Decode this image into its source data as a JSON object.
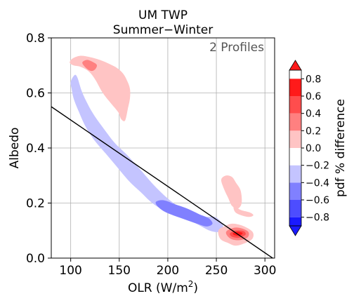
{
  "chart_data": {
    "type": "contour",
    "title": "UM TWP",
    "subtitle": "Summer−Winter",
    "annotation": "2 Profiles",
    "xlabel": "OLR (W/m",
    "xlabel_sup": "2",
    "xlabel_suffix": ")",
    "ylabel": "Albedo",
    "xlim": [
      80,
      310
    ],
    "ylim": [
      0.0,
      0.8
    ],
    "xticks": [
      100,
      150,
      200,
      250,
      300
    ],
    "yticks": [
      0.0,
      0.2,
      0.4,
      0.6,
      0.8
    ],
    "xtick_labels": [
      "100",
      "150",
      "200",
      "250",
      "300"
    ],
    "ytick_labels": [
      "0.0",
      "0.2",
      "0.4",
      "0.6",
      "0.8"
    ],
    "grid": true,
    "colorbar": {
      "label": "pdf % difference",
      "levels": [
        -0.9,
        -0.8,
        -0.6,
        -0.4,
        -0.2,
        0.0,
        0.2,
        0.4,
        0.6,
        0.8,
        0.9
      ],
      "tick_labels": [
        "−0.8",
        "−0.6",
        "−0.4",
        "−0.2",
        "0.0",
        "0.2",
        "0.4",
        "0.6",
        "0.8"
      ],
      "tick_values": [
        -0.8,
        -0.6,
        -0.4,
        -0.2,
        0.0,
        0.2,
        0.4,
        0.6,
        0.8
      ],
      "colors": [
        "#1a1aff",
        "#4d4dff",
        "#8080ff",
        "#c4c4ff",
        "#ffffff",
        "#ffc4c4",
        "#ff8080",
        "#ff4d4d",
        "#ff1a1a"
      ],
      "extend": "both"
    },
    "line": {
      "x": [
        80,
        308
      ],
      "y": [
        0.55,
        0.0
      ],
      "color": "#000000"
    },
    "regions": [
      {
        "name": "pos-top-left",
        "level": 0.2,
        "color": "#ffc4c4",
        "points": [
          [
            99,
            0.71
          ],
          [
            102,
            0.725
          ],
          [
            110,
            0.735
          ],
          [
            120,
            0.73
          ],
          [
            130,
            0.72
          ],
          [
            140,
            0.705
          ],
          [
            148,
            0.69
          ],
          [
            154,
            0.67
          ],
          [
            158,
            0.645
          ],
          [
            161,
            0.615
          ],
          [
            161,
            0.58
          ],
          [
            159,
            0.545
          ],
          [
            156,
            0.5
          ],
          [
            152,
            0.505
          ],
          [
            149,
            0.53
          ],
          [
            142,
            0.56
          ],
          [
            133,
            0.6
          ],
          [
            125,
            0.65
          ],
          [
            118,
            0.68
          ],
          [
            110,
            0.695
          ],
          [
            103,
            0.7
          ]
        ]
      },
      {
        "name": "pos-top-left-core",
        "level": 0.4,
        "color": "#ff8080",
        "points": [
          [
            112,
            0.71
          ],
          [
            117,
            0.72
          ],
          [
            124,
            0.71
          ],
          [
            127,
            0.7
          ],
          [
            125,
            0.685
          ],
          [
            121,
            0.68
          ],
          [
            116,
            0.69
          ]
        ]
      },
      {
        "name": "neg-band",
        "level": -0.2,
        "color": "#c4c4ff",
        "points": [
          [
            100,
            0.64
          ],
          [
            104,
            0.665
          ],
          [
            107,
            0.655
          ],
          [
            111,
            0.61
          ],
          [
            116,
            0.57
          ],
          [
            123,
            0.525
          ],
          [
            132,
            0.48
          ],
          [
            145,
            0.42
          ],
          [
            158,
            0.375
          ],
          [
            172,
            0.32
          ],
          [
            187,
            0.26
          ],
          [
            204,
            0.205
          ],
          [
            220,
            0.17
          ],
          [
            235,
            0.15
          ],
          [
            248,
            0.15
          ],
          [
            255,
            0.13
          ],
          [
            257,
            0.11
          ],
          [
            252,
            0.095
          ],
          [
            243,
            0.1
          ],
          [
            232,
            0.12
          ],
          [
            215,
            0.15
          ],
          [
            198,
            0.17
          ],
          [
            184,
            0.2
          ],
          [
            172,
            0.24
          ],
          [
            160,
            0.28
          ],
          [
            148,
            0.33
          ],
          [
            136,
            0.38
          ],
          [
            124,
            0.43
          ],
          [
            115,
            0.48
          ],
          [
            108,
            0.535
          ],
          [
            103,
            0.58
          ],
          [
            101,
            0.615
          ]
        ]
      },
      {
        "name": "neg-core",
        "level": -0.4,
        "color": "#8080ff",
        "points": [
          [
            188,
            0.205
          ],
          [
            196,
            0.21
          ],
          [
            208,
            0.195
          ],
          [
            220,
            0.18
          ],
          [
            232,
            0.16
          ],
          [
            242,
            0.145
          ],
          [
            246,
            0.125
          ],
          [
            240,
            0.115
          ],
          [
            230,
            0.125
          ],
          [
            218,
            0.14
          ],
          [
            206,
            0.155
          ],
          [
            196,
            0.17
          ],
          [
            189,
            0.19
          ]
        ]
      },
      {
        "name": "pos-mid-right",
        "level": 0.2,
        "color": "#ffc4c4",
        "points": [
          [
            255,
            0.285
          ],
          [
            260,
            0.3
          ],
          [
            266,
            0.295
          ],
          [
            270,
            0.275
          ],
          [
            275,
            0.245
          ],
          [
            276,
            0.2
          ],
          [
            272,
            0.18
          ],
          [
            266,
            0.19
          ],
          [
            262,
            0.22
          ],
          [
            258,
            0.25
          ]
        ]
      },
      {
        "name": "pos-mid-right-b",
        "level": 0.2,
        "color": "#ffc4c4",
        "points": [
          [
            268,
            0.19
          ],
          [
            275,
            0.175
          ],
          [
            285,
            0.165
          ],
          [
            288,
            0.155
          ],
          [
            282,
            0.15
          ],
          [
            270,
            0.165
          ]
        ]
      },
      {
        "name": "pos-bottom-right",
        "level": 0.2,
        "color": "#ffc4c4",
        "points": [
          [
            252,
            0.1
          ],
          [
            258,
            0.115
          ],
          [
            266,
            0.125
          ],
          [
            275,
            0.12
          ],
          [
            284,
            0.105
          ],
          [
            288,
            0.09
          ],
          [
            287,
            0.07
          ],
          [
            280,
            0.055
          ],
          [
            270,
            0.045
          ],
          [
            262,
            0.055
          ],
          [
            254,
            0.07
          ]
        ]
      },
      {
        "name": "pos-bottom-right-mid",
        "level": 0.4,
        "color": "#ff8080",
        "points": [
          [
            260,
            0.095
          ],
          [
            268,
            0.11
          ],
          [
            276,
            0.108
          ],
          [
            283,
            0.095
          ],
          [
            282,
            0.075
          ],
          [
            273,
            0.065
          ],
          [
            264,
            0.072
          ]
        ]
      },
      {
        "name": "pos-bottom-right-high",
        "level": 0.6,
        "color": "#ff4d4d",
        "points": [
          [
            264,
            0.09
          ],
          [
            270,
            0.1
          ],
          [
            278,
            0.098
          ],
          [
            280,
            0.085
          ],
          [
            273,
            0.074
          ],
          [
            266,
            0.078
          ]
        ]
      },
      {
        "name": "pos-bottom-right-peak",
        "level": 0.8,
        "color": "#ff1a1a",
        "points": [
          [
            267,
            0.09
          ],
          [
            272,
            0.096
          ],
          [
            277,
            0.091
          ],
          [
            274,
            0.082
          ],
          [
            269,
            0.083
          ]
        ]
      }
    ]
  }
}
